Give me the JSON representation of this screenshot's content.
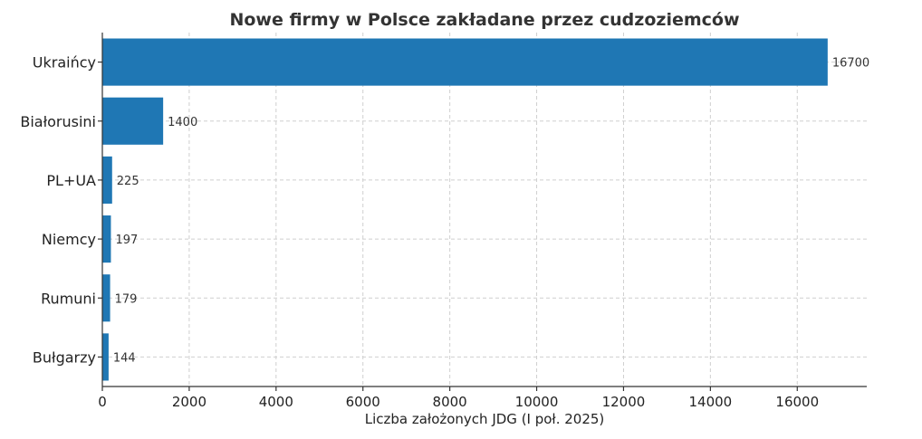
{
  "chart_data": {
    "type": "bar",
    "orientation": "horizontal",
    "title": "Nowe firmy w Polsce zakładane przez cudzoziemców",
    "xlabel": "Liczba założonych JDG (I poł. 2025)",
    "ylabel": "",
    "categories": [
      "Ukraińcy",
      "Białorusini",
      "PL+UA",
      "Niemcy",
      "Rumuni",
      "Bułgarzy"
    ],
    "values": [
      16700,
      1400,
      225,
      197,
      179,
      144
    ],
    "data_labels": [
      "16700",
      "1400",
      "225",
      "197",
      "179",
      "144"
    ],
    "xlim": [
      0,
      17600
    ],
    "x_ticks": [
      0,
      2000,
      4000,
      6000,
      8000,
      10000,
      12000,
      14000,
      16000
    ],
    "x_tick_labels": [
      "0",
      "2000",
      "4000",
      "6000",
      "8000",
      "10000",
      "12000",
      "14000",
      "16000"
    ],
    "grid": true,
    "bar_color": "#1f77b4"
  }
}
